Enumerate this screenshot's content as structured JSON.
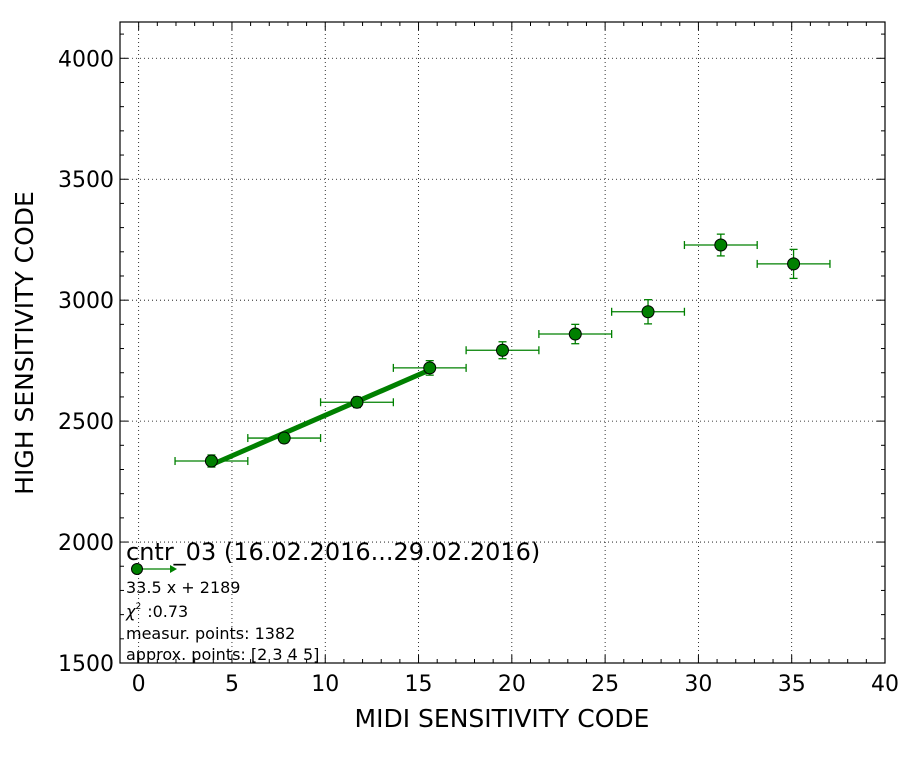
{
  "chart_data": {
    "type": "scatter",
    "xlabel": "MIDI SENSITIVITY CODE",
    "ylabel": "HIGH SENSITIVITY CODE",
    "xlim": [
      -1,
      40
    ],
    "ylim": [
      1500,
      4150
    ],
    "xticks": [
      0,
      5,
      10,
      15,
      20,
      25,
      30,
      35,
      40
    ],
    "yticks": [
      1500,
      2000,
      2500,
      3000,
      3500,
      4000
    ],
    "grid": true,
    "series_color": "#008000",
    "points": [
      {
        "x": 3.9,
        "y": 2335,
        "xerr": 1.95,
        "yerr": 25
      },
      {
        "x": 7.8,
        "y": 2430,
        "xerr": 1.95,
        "yerr": 20
      },
      {
        "x": 11.7,
        "y": 2578,
        "xerr": 1.95,
        "yerr": 22
      },
      {
        "x": 15.6,
        "y": 2720,
        "xerr": 1.95,
        "yerr": 30
      },
      {
        "x": 19.5,
        "y": 2793,
        "xerr": 1.95,
        "yerr": 35
      },
      {
        "x": 23.4,
        "y": 2860,
        "xerr": 1.95,
        "yerr": 40
      },
      {
        "x": 27.3,
        "y": 2952,
        "xerr": 1.95,
        "yerr": 50
      },
      {
        "x": 31.2,
        "y": 3228,
        "xerr": 1.95,
        "yerr": 45
      },
      {
        "x": 35.1,
        "y": 3150,
        "xerr": 1.95,
        "yerr": 60
      }
    ],
    "fit": {
      "slope": 33.5,
      "intercept": 2189,
      "x_range": [
        3.9,
        15.6
      ],
      "color": "#008000"
    },
    "legend": {
      "placement": "bottom-left",
      "title": "cntr_03 (16.02.2016...29.02.2016)",
      "equation": "33.5 x + 2189",
      "chi_label": "χ",
      "chi_sup": "2",
      "chi_value": ":0.73",
      "measur_points": "measur. points: 1382",
      "approx_points": "approx. points: [2 3 4 5]"
    }
  }
}
